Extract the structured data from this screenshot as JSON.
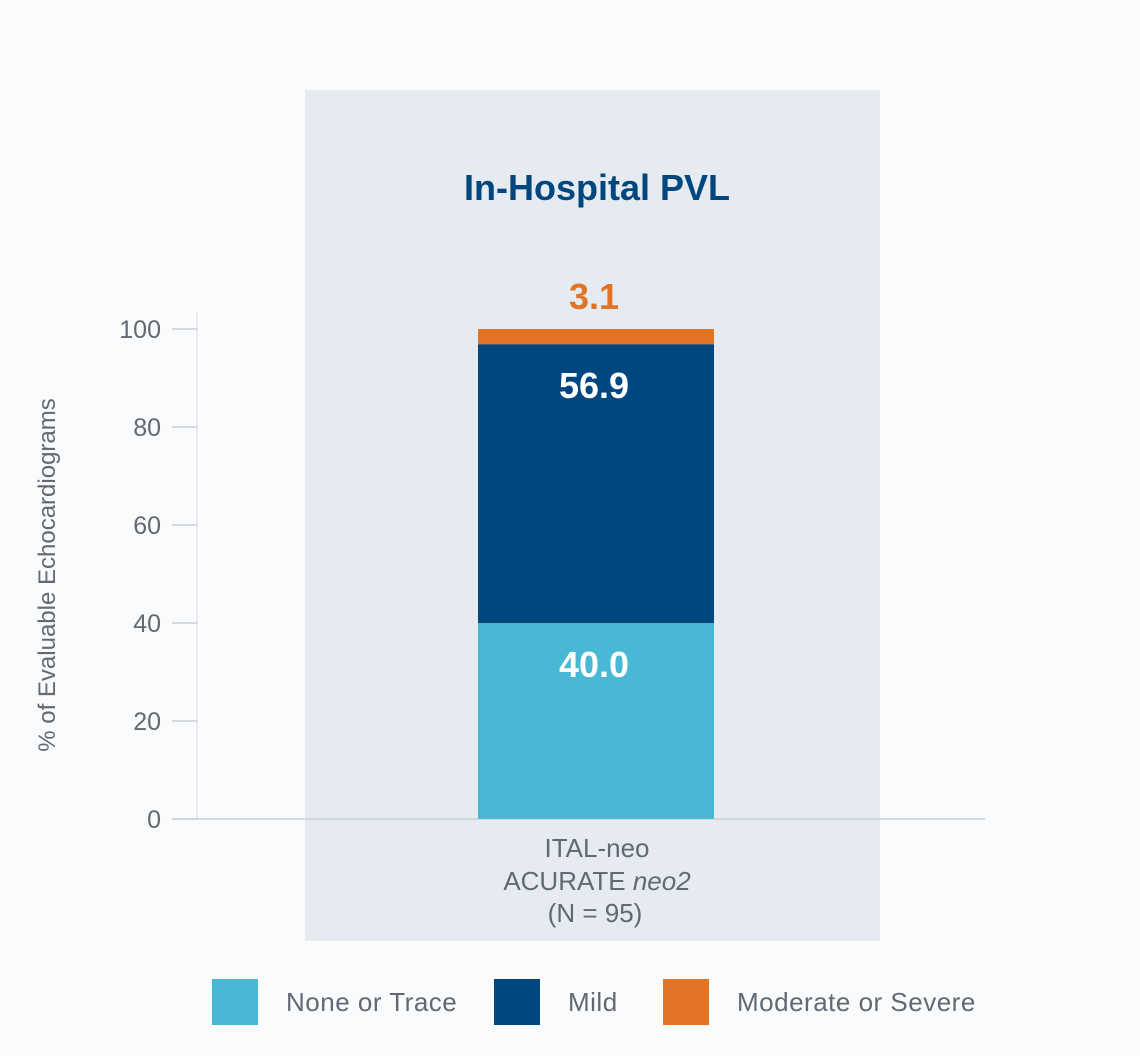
{
  "chart_data": {
    "type": "bar",
    "stacked": true,
    "title": "In-Hospital PVL",
    "ylabel": "% of Evaluable Echocardiograms",
    "ylim": [
      0,
      100
    ],
    "yticks": [
      "0",
      "20",
      "40",
      "60",
      "80",
      "100"
    ],
    "categories": [
      {
        "lines": [
          "ITAL-neo",
          "ACURATE neo2",
          "(N = 95)"
        ],
        "line1": "ITAL-neo",
        "line2_prefix": "ACURATE ",
        "line2_italic": "neo2",
        "line3": "(N = 95)"
      }
    ],
    "series": [
      {
        "name": "None or Trace",
        "values": [
          40.0
        ],
        "label": "40.0",
        "color": "#48b8d4",
        "label_color": "#ffffff"
      },
      {
        "name": "Mild",
        "values": [
          56.9
        ],
        "label": "56.9",
        "color": "#00467f",
        "label_color": "#ffffff"
      },
      {
        "name": "Moderate or Severe",
        "values": [
          3.1
        ],
        "label": "3.1",
        "color": "#e07424",
        "label_color": "#e07424"
      }
    ],
    "grid": false,
    "legend_position": "bottom",
    "colors": {
      "highlight_panel": "#e5ebf1",
      "title": "#00467f",
      "axis_text": "#616a74",
      "axis_line": "#d9dde2"
    }
  }
}
